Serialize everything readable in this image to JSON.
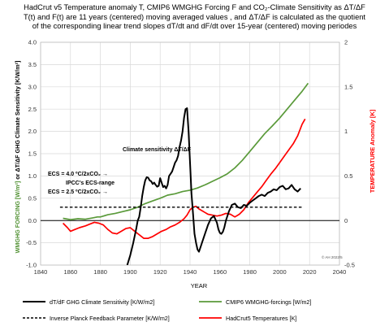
{
  "title": {
    "line1": "HadCrut v5 Temperature anomaly T, CMIP6 WMGHG Forcing F and CO₂-Climate Sensitivity as ΔT/ΔF",
    "line2": "T(t) and F(t) are 11 years (centered) moving averaged values , and ΔT/ΔF is calculated as the quotient",
    "line3": "of the corresponding linear trend slopes dT/dt and dF/dt over 15-year (centered) moving periodes"
  },
  "chart_data": {
    "type": "line",
    "xlabel": "YEAR",
    "ylabel_left_part1": "WMGHG FORCING [W/m²]",
    "ylabel_left_part2": " or ",
    "ylabel_left_part3": "ΔT/ΔF GHG Climate Sensitivity  [K/W/m²]",
    "ylabel_right_part1": "TEMPERATURE ",
    "ylabel_right_part2": "Anomaly [K]",
    "xlim": [
      1840,
      2040
    ],
    "ylim": [
      -1.0,
      4.0
    ],
    "y2lim": [
      -0.5,
      2.0
    ],
    "x_ticks": [
      "1840",
      "1860",
      "1880",
      "1900",
      "1920",
      "1940",
      "1960",
      "1980",
      "2000",
      "2020",
      "2040"
    ],
    "y_ticks": [
      "-1.0",
      "-0.5",
      "0.0",
      "0.5",
      "1.0",
      "1.5",
      "2.0",
      "2.5",
      "3.0",
      "3.5",
      "4.0"
    ],
    "y2_ticks": [
      "-0.5",
      "0",
      "0.5",
      "1",
      "1.5",
      "2"
    ],
    "annotations": {
      "sensitivity": "Climate sensitivity ΔT/ΔF",
      "ecs_high": "ECS = 4.0 ºC/2xCO₂ →",
      "ecs_range": "IPCC's ECS-range",
      "ecs_low": "ECS = 2.5 ºC/2xCO₂ →",
      "copyright": "© AH 2022/5"
    },
    "series": [
      {
        "name": "dT/dF GHG Climate Sensitivity  [K/W/m2]",
        "color": "#000000",
        "axis": "left",
        "x": [
          1898,
          1900,
          1902,
          1904,
          1905,
          1906,
          1907,
          1908,
          1909,
          1910,
          1911,
          1912,
          1913,
          1914,
          1915,
          1916,
          1917,
          1918,
          1919,
          1920,
          1921,
          1922,
          1923,
          1924,
          1925,
          1926,
          1927,
          1928,
          1929,
          1930,
          1931,
          1932,
          1933,
          1934,
          1935,
          1936,
          1937,
          1938,
          1939,
          1940,
          1941,
          1942,
          1943,
          1944,
          1945,
          1946,
          1947,
          1948,
          1950,
          1952,
          1954,
          1956,
          1958,
          1959,
          1960,
          1961,
          1962,
          1963,
          1964,
          1966,
          1968,
          1970,
          1972,
          1974,
          1976,
          1978,
          1980,
          1982,
          1984,
          1986,
          1988,
          1990,
          1992,
          1994,
          1996,
          1998,
          2000,
          2002,
          2004,
          2006,
          2008,
          2010,
          2012,
          2014
        ],
        "y": [
          -1.0,
          -0.78,
          -0.5,
          -0.18,
          0.0,
          0.08,
          0.3,
          0.55,
          0.75,
          0.9,
          0.97,
          0.96,
          0.9,
          0.88,
          0.82,
          0.85,
          0.8,
          0.76,
          0.78,
          0.95,
          0.85,
          0.75,
          0.78,
          0.72,
          0.8,
          1.0,
          1.05,
          1.1,
          1.2,
          1.3,
          1.35,
          1.45,
          1.65,
          1.8,
          2.0,
          2.3,
          2.5,
          2.52,
          2.0,
          1.3,
          0.6,
          0.15,
          -0.3,
          -0.5,
          -0.65,
          -0.7,
          -0.6,
          -0.5,
          -0.3,
          -0.1,
          0.05,
          0.1,
          -0.05,
          -0.2,
          -0.28,
          -0.3,
          -0.25,
          -0.15,
          0.0,
          0.2,
          0.35,
          0.38,
          0.3,
          0.28,
          0.35,
          0.33,
          0.4,
          0.45,
          0.5,
          0.55,
          0.58,
          0.55,
          0.62,
          0.65,
          0.7,
          0.68,
          0.75,
          0.78,
          0.7,
          0.72,
          0.8,
          0.7,
          0.65,
          0.72
        ]
      },
      {
        "name": "CMIP6 WMGHG-forcings [W/m2]",
        "color": "#5a9a3a",
        "axis": "left",
        "x": [
          1855,
          1860,
          1865,
          1870,
          1875,
          1878,
          1880,
          1885,
          1890,
          1895,
          1900,
          1905,
          1910,
          1915,
          1920,
          1925,
          1930,
          1935,
          1940,
          1945,
          1950,
          1955,
          1960,
          1965,
          1970,
          1975,
          1980,
          1985,
          1990,
          1995,
          2000,
          2005,
          2010,
          2015,
          2019
        ],
        "y": [
          0.05,
          0.02,
          0.04,
          0.03,
          0.06,
          0.08,
          0.08,
          0.13,
          0.16,
          0.2,
          0.24,
          0.3,
          0.38,
          0.44,
          0.5,
          0.57,
          0.6,
          0.65,
          0.68,
          0.73,
          0.8,
          0.88,
          0.96,
          1.05,
          1.18,
          1.35,
          1.55,
          1.75,
          1.95,
          2.12,
          2.3,
          2.5,
          2.7,
          2.9,
          3.08
        ]
      },
      {
        "name": "Inverse Planck Feedback Parameter [K/W/m2]",
        "color": "#000000",
        "dashed": true,
        "axis": "left",
        "x": [
          1853,
          2015
        ],
        "y": [
          0.3,
          0.3
        ]
      },
      {
        "name": "HadCrut5 Temperatures [K]",
        "color": "#ff0000",
        "axis": "right",
        "x": [
          1855,
          1858,
          1860,
          1863,
          1866,
          1870,
          1873,
          1876,
          1879,
          1882,
          1885,
          1888,
          1891,
          1894,
          1897,
          1900,
          1903,
          1906,
          1909,
          1912,
          1915,
          1918,
          1921,
          1924,
          1927,
          1930,
          1933,
          1936,
          1938,
          1940,
          1942,
          1944,
          1946,
          1948,
          1950,
          1952,
          1955,
          1958,
          1961,
          1964,
          1967,
          1970,
          1973,
          1976,
          1979,
          1982,
          1985,
          1988,
          1991,
          1994,
          1997,
          2000,
          2003,
          2006,
          2009,
          2012,
          2015,
          2017
        ],
        "y": [
          -0.03,
          -0.08,
          -0.12,
          -0.1,
          -0.08,
          -0.06,
          -0.04,
          -0.02,
          -0.03,
          -0.05,
          -0.1,
          -0.14,
          -0.15,
          -0.12,
          -0.09,
          -0.08,
          -0.12,
          -0.16,
          -0.2,
          -0.2,
          -0.18,
          -0.15,
          -0.12,
          -0.1,
          -0.07,
          -0.05,
          -0.02,
          0.02,
          0.06,
          0.12,
          0.15,
          0.16,
          0.13,
          0.11,
          0.09,
          0.07,
          0.06,
          0.05,
          0.06,
          0.08,
          0.07,
          0.04,
          0.07,
          0.12,
          0.2,
          0.26,
          0.32,
          0.38,
          0.45,
          0.52,
          0.58,
          0.65,
          0.72,
          0.79,
          0.86,
          0.95,
          1.08,
          1.14
        ]
      }
    ]
  }
}
